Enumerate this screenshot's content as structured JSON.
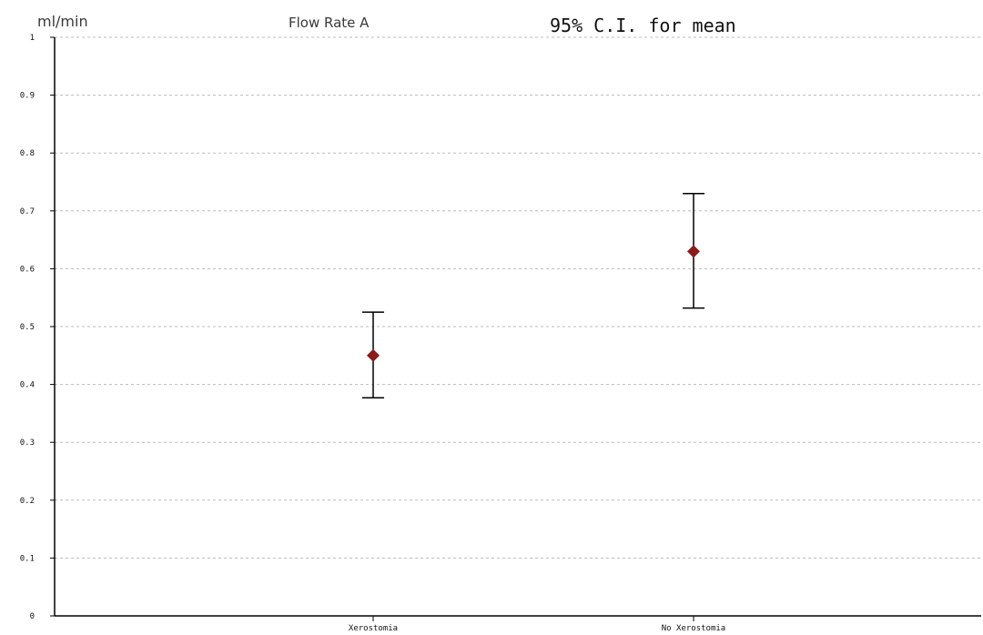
{
  "chart_data": {
    "type": "errorbar",
    "title": "95% C.I. for mean",
    "subtitle": "Flow Rate A",
    "ylabel": "ml/min",
    "xlabel": "",
    "ylim": [
      0,
      1
    ],
    "yticks": [
      "0",
      "0.1",
      "0.2",
      "0.3",
      "0.4",
      "0.5",
      "0.6",
      "0.7",
      "0.8",
      "0.9",
      "1"
    ],
    "categories": [
      "Xerostomia",
      "No Xerostomia"
    ],
    "means": [
      0.45,
      0.63
    ],
    "lower": [
      0.377,
      0.532
    ],
    "upper": [
      0.525,
      0.73
    ],
    "grid": true,
    "marker_color": "#8b1a1a",
    "errorbar_color": "#000000",
    "grid_color": "#bbbbbb",
    "axis_color": "#000000"
  }
}
